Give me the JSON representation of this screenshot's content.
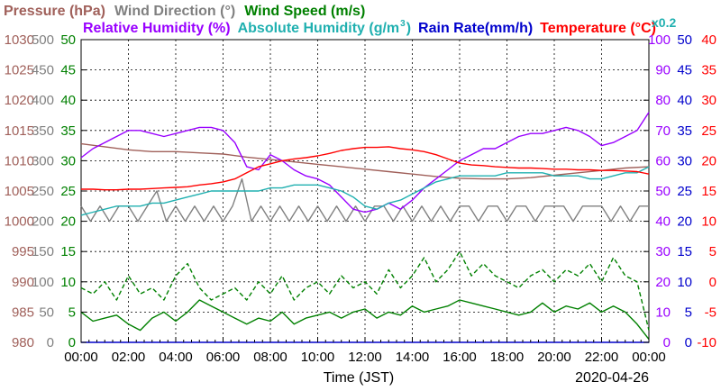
{
  "chart_data": {
    "type": "line",
    "date": "2020-04-26",
    "xlabel": "Time (JST)",
    "x_ticks": [
      "00:00",
      "02:00",
      "04:00",
      "06:00",
      "08:00",
      "10:00",
      "12:00",
      "14:00",
      "16:00",
      "18:00",
      "20:00",
      "22:00",
      "00:00"
    ],
    "grid": true,
    "legend_top": [
      {
        "label": "Pressure (hPa)",
        "color": "#a0605a"
      },
      {
        "label": "Wind Direction (°)",
        "color": "#808080"
      },
      {
        "label": "Wind Speed (m/s)",
        "color": "#008000"
      }
    ],
    "legend_bottom": [
      {
        "label": "Relative Humidity (%)",
        "color": "#9900ff"
      },
      {
        "label": "Absolute Humidity (g/m",
        "sup": "3",
        "close": ")",
        "color": "#20b0b0"
      },
      {
        "label": "Rain Rate(mm/h)",
        "color": "#0000cc"
      },
      {
        "label": "Temperature (°C)",
        "color": "#ff0000"
      }
    ],
    "abs_humidity_scale_note": {
      "text": "x0.2",
      "color": "#20b0b0"
    },
    "axes": {
      "pressure": {
        "color": "#a0605a",
        "ticks": [
          "980",
          "985",
          "990",
          "995",
          "1000",
          "1005",
          "1010",
          "1015",
          "1020",
          "1025",
          "1030"
        ],
        "range": [
          980,
          1030
        ]
      },
      "wind_dir": {
        "color": "#808080",
        "ticks": [
          "0",
          "50",
          "100",
          "150",
          "200",
          "250",
          "300",
          "350",
          "400",
          "450",
          "500"
        ],
        "range": [
          0,
          500
        ]
      },
      "wind_speed": {
        "color": "#008000",
        "ticks": [
          "0",
          "5",
          "10",
          "15",
          "20",
          "25",
          "30",
          "35",
          "40",
          "45",
          "50"
        ],
        "range": [
          0,
          50
        ]
      },
      "humidity": {
        "color": "#9900ff",
        "ticks": [
          "0",
          "10",
          "20",
          "30",
          "40",
          "50",
          "60",
          "70",
          "80",
          "90",
          "100"
        ],
        "range": [
          0,
          100
        ]
      },
      "rain": {
        "color": "#0000cc",
        "ticks": [
          "0",
          "5",
          "10",
          "15",
          "20",
          "25",
          "30",
          "35",
          "40",
          "45",
          "50"
        ],
        "range": [
          0,
          50
        ]
      },
      "temp": {
        "color": "#ff0000",
        "ticks": [
          "-10",
          "-5",
          "0",
          "5",
          "10",
          "15",
          "20",
          "25",
          "30",
          "35",
          "40"
        ],
        "range": [
          -10,
          40
        ]
      }
    },
    "series": [
      {
        "name": "Pressure (hPa)",
        "color": "#a0605a",
        "axis": "pressure",
        "style": "solid",
        "x": [
          0,
          1,
          2,
          3,
          4,
          5,
          6,
          7,
          8,
          9,
          10,
          11,
          12,
          13,
          14,
          15,
          16,
          17,
          18,
          19,
          20,
          21,
          22,
          23,
          24
        ],
        "y": [
          1012.8,
          1012.3,
          1011.8,
          1011.5,
          1011.5,
          1011.3,
          1011.1,
          1010.6,
          1010.2,
          1009.8,
          1009.4,
          1009.0,
          1008.6,
          1008.2,
          1007.8,
          1007.4,
          1007.1,
          1007.0,
          1007.0,
          1007.2,
          1007.6,
          1008.0,
          1008.4,
          1008.8,
          1009.0
        ]
      },
      {
        "name": "Wind Direction (°)",
        "color": "#808080",
        "axis": "wind_dir",
        "style": "solid",
        "x": [
          0,
          0.4,
          0.8,
          1.2,
          1.6,
          2.0,
          2.4,
          2.8,
          3.2,
          3.6,
          4.0,
          4.4,
          4.8,
          5.2,
          5.6,
          6.0,
          6.4,
          6.8,
          7.2,
          7.6,
          8.0,
          8.4,
          8.8,
          9.2,
          9.6,
          10.0,
          10.4,
          10.8,
          11.2,
          11.6,
          12.0,
          12.4,
          12.8,
          13.2,
          13.6,
          14.0,
          14.4,
          14.8,
          15.2,
          15.6,
          16.0,
          16.4,
          16.8,
          17.2,
          17.6,
          18.0,
          18.4,
          18.8,
          19.2,
          19.6,
          20.0,
          20.4,
          20.8,
          21.2,
          21.6,
          22.0,
          22.4,
          22.8,
          23.2,
          23.6,
          24.0
        ],
        "y": [
          225,
          200,
          225,
          200,
          225,
          225,
          200,
          225,
          250,
          200,
          225,
          200,
          225,
          200,
          225,
          200,
          225,
          270,
          200,
          225,
          200,
          225,
          200,
          225,
          200,
          225,
          200,
          225,
          200,
          225,
          200,
          225,
          225,
          200,
          225,
          200,
          225,
          200,
          225,
          200,
          225,
          225,
          200,
          225,
          225,
          200,
          225,
          225,
          200,
          225,
          225,
          225,
          200,
          225,
          225,
          225,
          200,
          225,
          200,
          225,
          225
        ]
      },
      {
        "name": "Wind Speed avg (m/s)",
        "color": "#008000",
        "axis": "wind_speed",
        "style": "solid",
        "x": [
          0,
          0.5,
          1,
          1.5,
          2,
          2.5,
          3,
          3.5,
          4,
          4.5,
          5,
          5.5,
          6,
          6.5,
          7,
          7.5,
          8,
          8.5,
          9,
          9.5,
          10,
          10.5,
          11,
          11.5,
          12,
          12.5,
          13,
          13.5,
          14,
          14.5,
          15,
          15.5,
          16,
          16.5,
          17,
          17.5,
          18,
          18.5,
          19,
          19.5,
          20,
          20.5,
          21,
          21.5,
          22,
          22.5,
          23,
          23.5,
          24
        ],
        "y": [
          5,
          3.5,
          4,
          4.5,
          3,
          2,
          4,
          5,
          3.5,
          5,
          7,
          6,
          5,
          4,
          3,
          4,
          3.5,
          5,
          3,
          4,
          4.5,
          5,
          4,
          5,
          5.5,
          4,
          5,
          4.5,
          6,
          5,
          5.5,
          6,
          7,
          6.5,
          6,
          5.5,
          5,
          4.5,
          5,
          6.5,
          5,
          6,
          5.5,
          6.5,
          5,
          6,
          5,
          3,
          0.5
        ]
      },
      {
        "name": "Wind Speed gust (m/s)",
        "color": "#008000",
        "axis": "wind_speed",
        "style": "dashed",
        "x": [
          0,
          0.5,
          1,
          1.5,
          2,
          2.5,
          3,
          3.5,
          4,
          4.5,
          5,
          5.5,
          6,
          6.5,
          7,
          7.5,
          8,
          8.5,
          9,
          9.5,
          10,
          10.5,
          11,
          11.5,
          12,
          12.5,
          13,
          13.5,
          14,
          14.5,
          15,
          15.5,
          16,
          16.5,
          17,
          17.5,
          18,
          18.5,
          19,
          19.5,
          20,
          20.5,
          21,
          21.5,
          22,
          22.5,
          23,
          23.5,
          24
        ],
        "y": [
          9,
          8,
          10,
          7,
          11,
          8,
          9,
          7,
          11,
          13,
          9,
          7,
          8,
          9,
          7,
          10,
          8,
          11,
          7,
          9,
          10,
          8,
          11,
          9,
          10,
          8,
          12,
          9,
          11,
          14,
          10,
          12,
          15,
          11,
          13,
          11,
          10,
          9,
          11,
          12,
          10,
          12,
          11,
          13,
          10,
          14,
          11,
          10,
          2
        ]
      },
      {
        "name": "Relative Humidity (%)",
        "color": "#9900ff",
        "axis": "humidity",
        "style": "solid",
        "x": [
          0,
          0.5,
          1,
          1.5,
          2,
          2.5,
          3,
          3.5,
          4,
          4.5,
          5,
          5.5,
          6,
          6.5,
          7,
          7.5,
          8,
          8.5,
          9,
          9.5,
          10,
          10.5,
          11,
          11.5,
          12,
          12.5,
          13,
          13.5,
          14,
          14.5,
          15,
          15.5,
          16,
          16.5,
          17,
          17.5,
          18,
          18.5,
          19,
          19.5,
          20,
          20.5,
          21,
          21.5,
          22,
          22.5,
          23,
          23.5,
          24
        ],
        "y": [
          61,
          64,
          66,
          68,
          70,
          70,
          69,
          68,
          69,
          70,
          71,
          71,
          70,
          66,
          58,
          57,
          62,
          60,
          57,
          55,
          54,
          52,
          48,
          44,
          43,
          44,
          46,
          44,
          47,
          51,
          54,
          57,
          60,
          62,
          64,
          64,
          66,
          68,
          69,
          69,
          70,
          71,
          70,
          68,
          65,
          66,
          68,
          70,
          76
        ]
      },
      {
        "name": "Absolute Humidity (g/m3) x0.2",
        "color": "#20b0b0",
        "axis": "humidity",
        "style": "solid",
        "x": [
          0,
          0.5,
          1,
          1.5,
          2,
          2.5,
          3,
          3.5,
          4,
          4.5,
          5,
          5.5,
          6,
          6.5,
          7,
          7.5,
          8,
          8.5,
          9,
          9.5,
          10,
          10.5,
          11,
          11.5,
          12,
          12.5,
          13,
          13.5,
          14,
          14.5,
          15,
          15.5,
          16,
          16.5,
          17,
          17.5,
          18,
          18.5,
          19,
          19.5,
          20,
          20.5,
          21,
          21.5,
          22,
          22.5,
          23,
          23.5,
          24
        ],
        "y": [
          42,
          43,
          44,
          45,
          45,
          45,
          46,
          46,
          47,
          48,
          49,
          50,
          50,
          50,
          50,
          50,
          51,
          51,
          52,
          52,
          52,
          51,
          50,
          48,
          45,
          44,
          46,
          47,
          49,
          51,
          53,
          54,
          55,
          55,
          55,
          55,
          56,
          56,
          56,
          56,
          55,
          55,
          55,
          54,
          54,
          55,
          56,
          56,
          58
        ]
      },
      {
        "name": "Temperature (°C)",
        "color": "#ff0000",
        "axis": "temp",
        "style": "solid",
        "x": [
          0,
          0.5,
          1,
          1.5,
          2,
          2.5,
          3,
          3.5,
          4,
          4.5,
          5,
          5.5,
          6,
          6.5,
          7,
          7.5,
          8,
          8.5,
          9,
          9.5,
          10,
          10.5,
          11,
          11.5,
          12,
          12.5,
          13,
          13.5,
          14,
          14.5,
          15,
          15.5,
          16,
          16.5,
          17,
          17.5,
          18,
          18.5,
          19,
          19.5,
          20,
          20.5,
          21,
          21.5,
          22,
          22.5,
          23,
          23.5,
          24
        ],
        "y": [
          15.3,
          15.3,
          15.2,
          15.2,
          15.3,
          15.3,
          15.4,
          15.5,
          15.6,
          15.7,
          16.0,
          16.2,
          16.5,
          17.0,
          18.0,
          19.0,
          19.5,
          20.0,
          20.3,
          20.5,
          20.8,
          21.2,
          21.7,
          22.0,
          22.2,
          22.2,
          22.3,
          22.0,
          21.8,
          21.5,
          21.0,
          20.3,
          19.6,
          19.3,
          19.2,
          19.0,
          18.9,
          18.8,
          18.8,
          18.7,
          18.6,
          18.6,
          18.5,
          18.5,
          18.4,
          18.4,
          18.3,
          18.2,
          17.8
        ]
      },
      {
        "name": "Rain Rate(mm/h)",
        "color": "#0000cc",
        "axis": "rain",
        "style": "solid",
        "x": [
          0,
          24
        ],
        "y": [
          0,
          0
        ]
      }
    ]
  }
}
